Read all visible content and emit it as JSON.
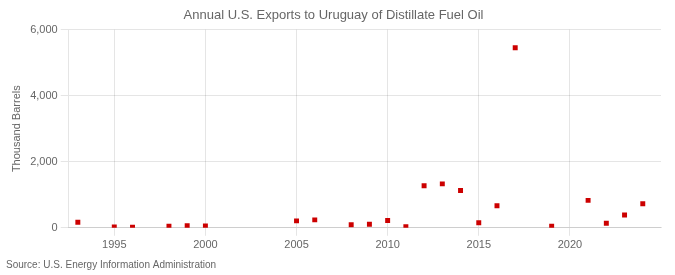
{
  "chart_data": {
    "type": "scatter",
    "title": "Annual U.S. Exports to Uruguay of Distillate Fuel Oil",
    "ylabel": "Thousand Barrels",
    "annotation": "Source: U.S. Energy Information Administration",
    "x": [
      1993,
      1995,
      1996,
      1998,
      1999,
      2000,
      2005,
      2006,
      2008,
      2009,
      2010,
      2011,
      2012,
      2013,
      2014,
      2015,
      2016,
      2017,
      2019,
      2021,
      2022,
      2023,
      2024
    ],
    "values": [
      170,
      25,
      15,
      50,
      60,
      55,
      210,
      240,
      95,
      110,
      220,
      35,
      1270,
      1330,
      1130,
      155,
      670,
      5450,
      50,
      830,
      135,
      385,
      730
    ],
    "color": "#cc0000",
    "marker": "square",
    "xlim": [
      1992.5,
      2025
    ],
    "ylim": [
      0,
      6000
    ],
    "xticks": [
      1995,
      2000,
      2005,
      2010,
      2015,
      2020
    ],
    "yticks": [
      0,
      {
        "value": 2000,
        "label": "2,000"
      },
      {
        "value": 4000,
        "label": "4,000"
      },
      {
        "value": 6000,
        "label": "6,000"
      }
    ],
    "grid": true
  }
}
